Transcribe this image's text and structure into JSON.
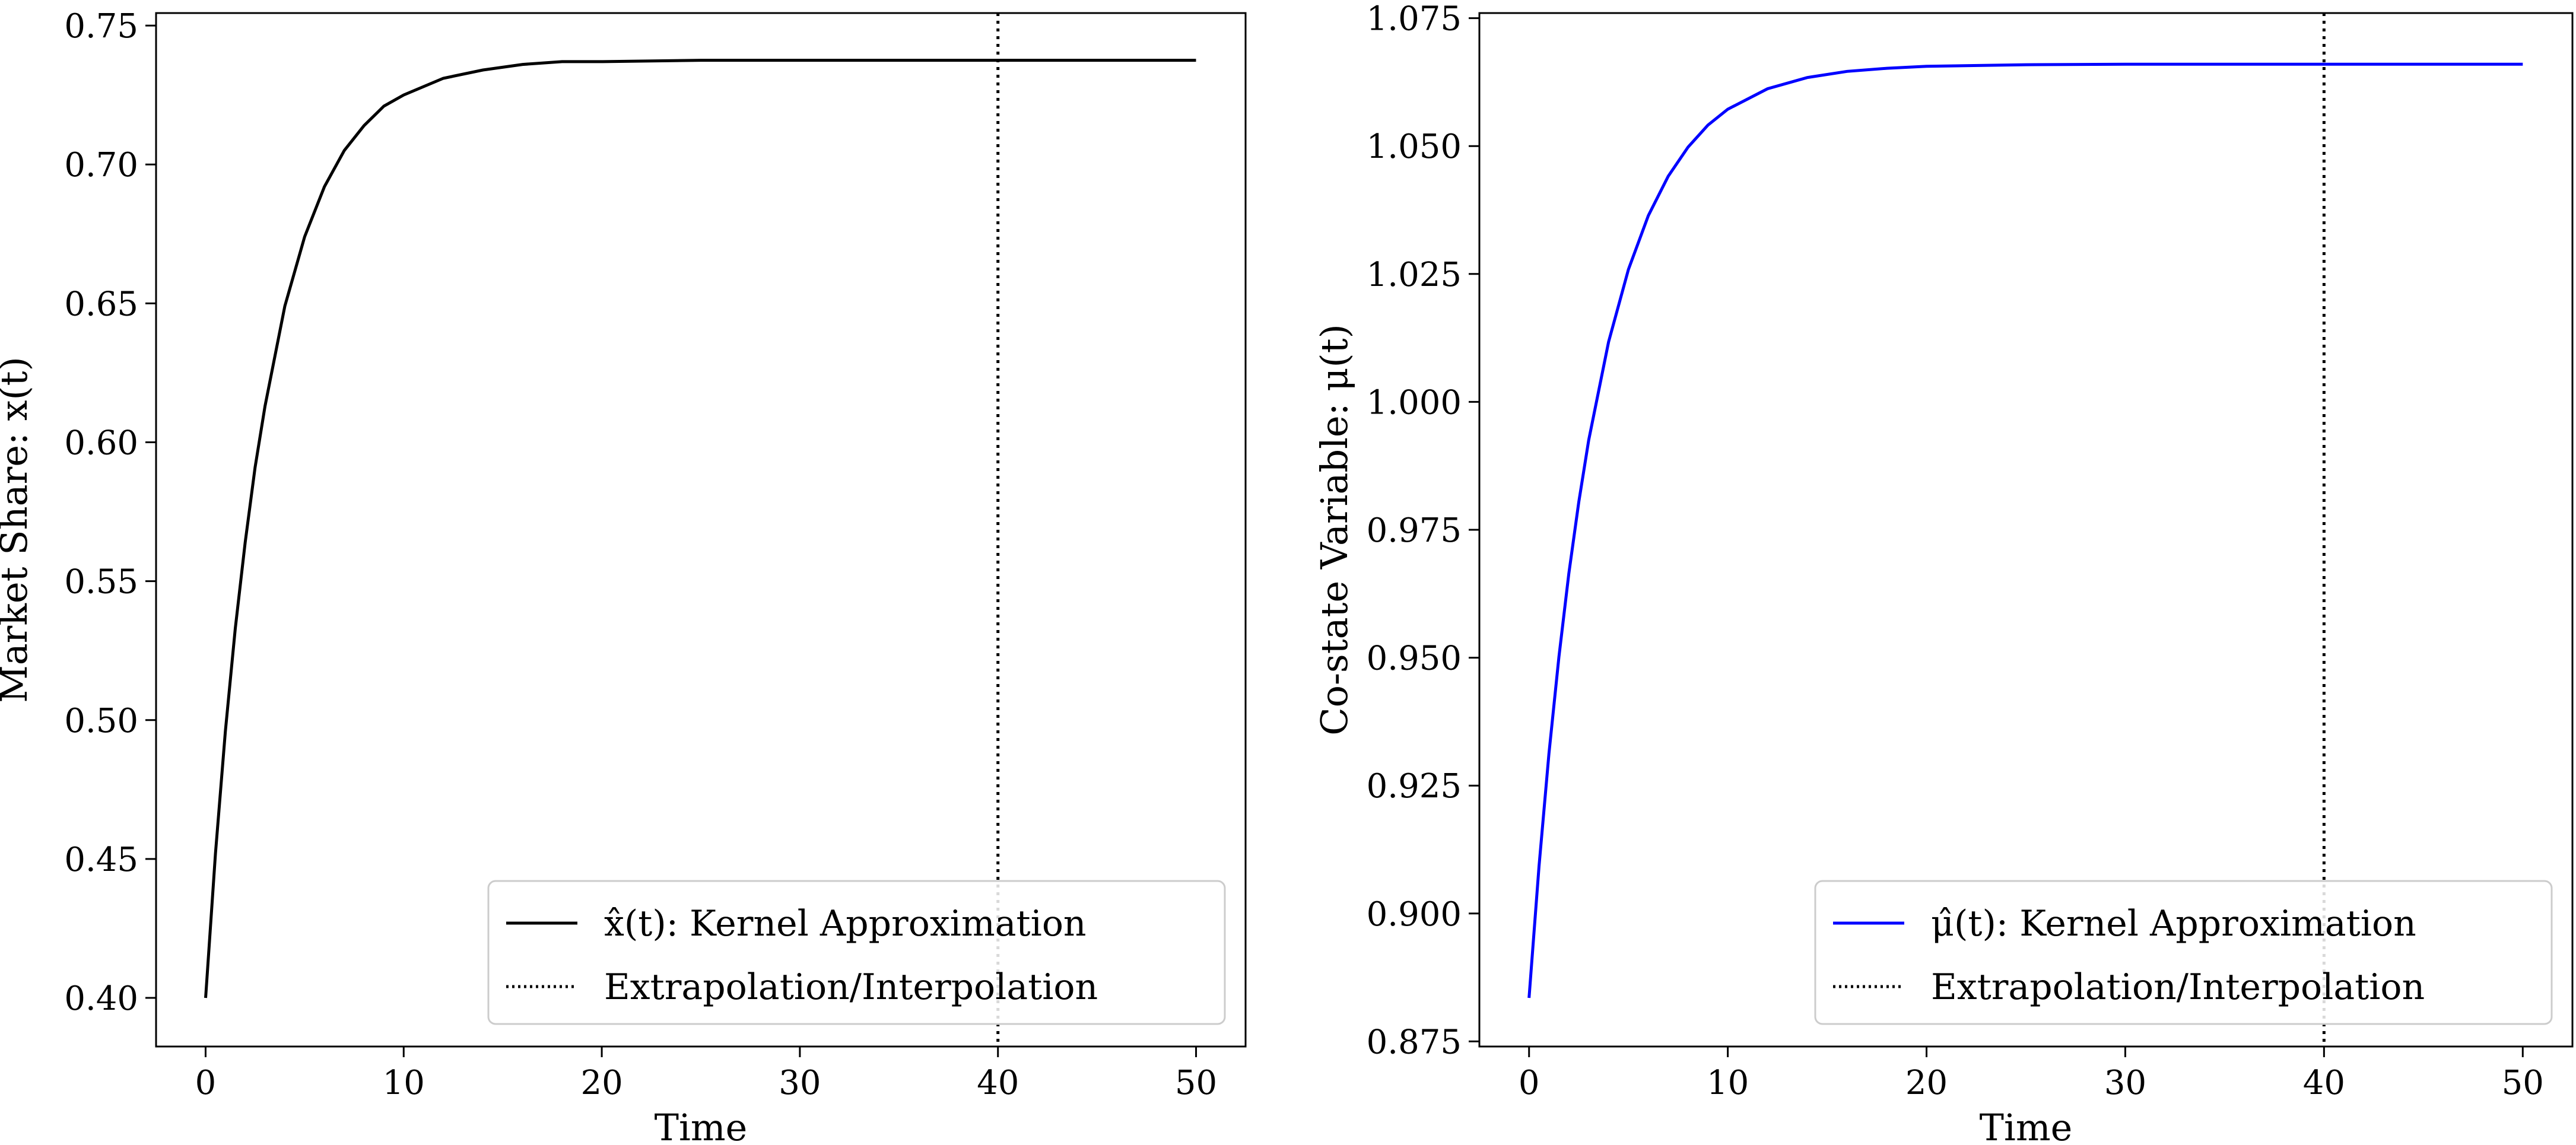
{
  "chart_data": [
    {
      "type": "line",
      "xlabel": "Time",
      "ylabel": "Market Share: x(t)",
      "xlim": [
        -2.5,
        52.5
      ],
      "ylim": [
        0.3825,
        0.7545
      ],
      "xticks": [
        "0",
        "10",
        "20",
        "30",
        "40",
        "50"
      ],
      "xtick_values": [
        0,
        10,
        20,
        30,
        40,
        50
      ],
      "yticks": [
        "0.40",
        "0.45",
        "0.50",
        "0.55",
        "0.60",
        "0.65",
        "0.70",
        "0.75"
      ],
      "ytick_values": [
        0.4,
        0.45,
        0.5,
        0.55,
        0.6,
        0.65,
        0.7,
        0.75
      ],
      "vline": 40,
      "legend_position": "lower-right",
      "legend": [
        "x̂(t):  Kernel Approximation",
        "Extrapolation/Interpolation"
      ],
      "series": [
        {
          "name": "x̂(t): Kernel Approximation",
          "color": "#000000",
          "x": [
            0,
            0.5,
            1,
            1.5,
            2,
            2.5,
            3,
            4,
            5,
            6,
            7,
            8,
            9,
            10,
            12,
            14,
            16,
            18,
            20,
            25,
            30,
            35,
            40,
            45,
            50
          ],
          "values": [
            0.4,
            0.452,
            0.496,
            0.533,
            0.564,
            0.591,
            0.613,
            0.649,
            0.674,
            0.692,
            0.705,
            0.714,
            0.721,
            0.725,
            0.731,
            0.734,
            0.736,
            0.737,
            0.737,
            0.7375,
            0.7375,
            0.7375,
            0.7375,
            0.7375,
            0.7375
          ]
        }
      ]
    },
    {
      "type": "line",
      "xlabel": "Time",
      "ylabel": "Co-state Variable: μ(t)",
      "xlim": [
        -2.5,
        52.5
      ],
      "ylim": [
        0.874,
        1.076
      ],
      "xticks": [
        "0",
        "10",
        "20",
        "30",
        "40",
        "50"
      ],
      "xtick_values": [
        0,
        10,
        20,
        30,
        40,
        50
      ],
      "yticks": [
        "0.875",
        "0.900",
        "0.925",
        "0.950",
        "0.975",
        "1.000",
        "1.025",
        "1.050",
        "1.075"
      ],
      "ytick_values": [
        0.875,
        0.9,
        0.925,
        0.95,
        0.975,
        1.0,
        1.025,
        1.05,
        1.075
      ],
      "vline": 40,
      "legend_position": "lower-right",
      "legend": [
        "μ̂(t):  Kernel Approximation",
        "Extrapolation/Interpolation"
      ],
      "series": [
        {
          "name": "μ̂(t): Kernel Approximation",
          "color": "#0000ff",
          "x": [
            0,
            0.5,
            1,
            1.5,
            2,
            2.5,
            3,
            4,
            5,
            6,
            7,
            8,
            9,
            10,
            12,
            14,
            16,
            18,
            20,
            25,
            30,
            35,
            40,
            45,
            50
          ],
          "values": [
            0.8835,
            0.9092,
            0.9312,
            0.9501,
            0.9664,
            0.9804,
            0.9925,
            1.0117,
            1.0259,
            1.0364,
            1.0441,
            1.0498,
            1.0541,
            1.0572,
            1.0612,
            1.0634,
            1.0646,
            1.0652,
            1.0656,
            1.0659,
            1.066,
            1.066,
            1.066,
            1.066,
            1.066
          ]
        }
      ]
    }
  ]
}
